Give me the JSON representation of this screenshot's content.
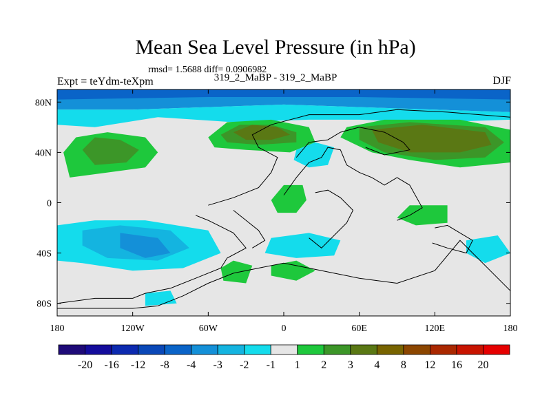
{
  "chart_data": {
    "type": "heatmap",
    "title": "Mean Sea Level Pressure (in hPa)",
    "stats": "rmsd= 1.5688 diff= 0.0906982",
    "left_label": "Expt = teYdm-teXpm",
    "center_label": "319_2_MaBP - 319_2_MaBP",
    "right_label": "DJF",
    "x_ticks": [
      {
        "value": -180,
        "label": "180"
      },
      {
        "value": -120,
        "label": "120W"
      },
      {
        "value": -60,
        "label": "60W"
      },
      {
        "value": 0,
        "label": "0"
      },
      {
        "value": 60,
        "label": "60E"
      },
      {
        "value": 120,
        "label": "120E"
      },
      {
        "value": 180,
        "label": "180"
      }
    ],
    "y_ticks": [
      {
        "value": 80,
        "label": "80N"
      },
      {
        "value": 40,
        "label": "40N"
      },
      {
        "value": 0,
        "label": "0"
      },
      {
        "value": -40,
        "label": "40S"
      },
      {
        "value": -80,
        "label": "80S"
      }
    ],
    "xlim": [
      -180,
      180
    ],
    "ylim": [
      -90,
      90
    ],
    "colorbar": {
      "labels": [
        "-20",
        "-16",
        "-12",
        "-8",
        "-4",
        "-3",
        "-2",
        "-1",
        "1",
        "2",
        "3",
        "4",
        "8",
        "12",
        "16",
        "20"
      ],
      "colors": [
        "#1e0a78",
        "#140c9c",
        "#0c2ab0",
        "#0a48b8",
        "#0a64c8",
        "#1490d8",
        "#14b4e0",
        "#14dcec",
        "#e6e6e6",
        "#1ec83c",
        "#3c9628",
        "#5a7814",
        "#786400",
        "#8c4600",
        "#aa2800",
        "#c81400",
        "#e60000"
      ]
    },
    "regions": [
      {
        "name": "north-polar-low",
        "cls": 5,
        "pts": [
          [
            -180,
            90
          ],
          [
            180,
            90
          ],
          [
            180,
            72
          ],
          [
            120,
            74
          ],
          [
            60,
            76
          ],
          [
            0,
            78
          ],
          [
            -60,
            76
          ],
          [
            -120,
            74
          ],
          [
            -180,
            74
          ]
        ]
      },
      {
        "name": "north-polar-core",
        "cls": 4,
        "pts": [
          [
            -180,
            90
          ],
          [
            180,
            90
          ],
          [
            180,
            82
          ],
          [
            60,
            84
          ],
          [
            -60,
            84
          ],
          [
            -180,
            82
          ]
        ]
      },
      {
        "name": "north-band",
        "cls": 7,
        "pts": [
          [
            -180,
            74
          ],
          [
            -120,
            74
          ],
          [
            -60,
            76
          ],
          [
            0,
            78
          ],
          [
            60,
            76
          ],
          [
            120,
            74
          ],
          [
            180,
            72
          ],
          [
            180,
            66
          ],
          [
            120,
            64
          ],
          [
            60,
            66
          ],
          [
            20,
            66
          ],
          [
            -40,
            64
          ],
          [
            -100,
            68
          ],
          [
            -150,
            60
          ],
          [
            -180,
            62
          ]
        ]
      },
      {
        "name": "north-pacific-high",
        "cls": 9,
        "pts": [
          [
            -175,
            40
          ],
          [
            -165,
            52
          ],
          [
            -140,
            56
          ],
          [
            -110,
            52
          ],
          [
            -100,
            40
          ],
          [
            -110,
            28
          ],
          [
            -140,
            24
          ],
          [
            -170,
            20
          ]
        ]
      },
      {
        "name": "north-pacific-high-2",
        "cls": 10,
        "pts": [
          [
            -160,
            42
          ],
          [
            -150,
            52
          ],
          [
            -130,
            50
          ],
          [
            -115,
            42
          ],
          [
            -125,
            32
          ],
          [
            -150,
            30
          ]
        ]
      },
      {
        "name": "north-atlantic-high",
        "cls": 9,
        "pts": [
          [
            -60,
            52
          ],
          [
            -45,
            64
          ],
          [
            -10,
            66
          ],
          [
            20,
            60
          ],
          [
            25,
            48
          ],
          [
            5,
            40
          ],
          [
            -30,
            42
          ],
          [
            -55,
            44
          ]
        ]
      },
      {
        "name": "north-atlantic-high-2",
        "cls": 10,
        "pts": [
          [
            -50,
            54
          ],
          [
            -35,
            62
          ],
          [
            -10,
            62
          ],
          [
            10,
            56
          ],
          [
            10,
            48
          ],
          [
            -20,
            46
          ],
          [
            -45,
            48
          ]
        ]
      },
      {
        "name": "north-atlantic-high-3",
        "cls": 11,
        "pts": [
          [
            -40,
            56
          ],
          [
            -25,
            62
          ],
          [
            -5,
            60
          ],
          [
            5,
            54
          ],
          [
            -10,
            50
          ],
          [
            -30,
            50
          ]
        ]
      },
      {
        "name": "siberian-high",
        "cls": 9,
        "pts": [
          [
            50,
            60
          ],
          [
            80,
            66
          ],
          [
            140,
            66
          ],
          [
            180,
            58
          ],
          [
            180,
            32
          ],
          [
            140,
            28
          ],
          [
            100,
            34
          ],
          [
            70,
            40
          ],
          [
            45,
            52
          ]
        ]
      },
      {
        "name": "siberian-high-2",
        "cls": 10,
        "pts": [
          [
            60,
            60
          ],
          [
            100,
            64
          ],
          [
            160,
            60
          ],
          [
            175,
            48
          ],
          [
            160,
            36
          ],
          [
            120,
            34
          ],
          [
            80,
            40
          ],
          [
            60,
            50
          ]
        ]
      },
      {
        "name": "siberian-high-3",
        "cls": 11,
        "pts": [
          [
            70,
            58
          ],
          [
            110,
            62
          ],
          [
            160,
            56
          ],
          [
            165,
            46
          ],
          [
            140,
            40
          ],
          [
            100,
            40
          ],
          [
            75,
            48
          ]
        ]
      },
      {
        "name": "mediterranean-low",
        "cls": 7,
        "pts": [
          [
            10,
            42
          ],
          [
            25,
            48
          ],
          [
            40,
            44
          ],
          [
            35,
            30
          ],
          [
            20,
            28
          ],
          [
            8,
            34
          ]
        ]
      },
      {
        "name": "central-africa-high",
        "cls": 9,
        "pts": [
          [
            -10,
            2
          ],
          [
            0,
            14
          ],
          [
            15,
            14
          ],
          [
            18,
            2
          ],
          [
            10,
            -8
          ],
          [
            -5,
            -8
          ]
        ]
      },
      {
        "name": "indian-ocean-high",
        "cls": 9,
        "pts": [
          [
            90,
            -12
          ],
          [
            100,
            -2
          ],
          [
            130,
            -2
          ],
          [
            130,
            -16
          ],
          [
            105,
            -18
          ]
        ]
      },
      {
        "name": "south-pacific-low",
        "cls": 7,
        "pts": [
          [
            -180,
            -18
          ],
          [
            -150,
            -14
          ],
          [
            -110,
            -14
          ],
          [
            -60,
            -22
          ],
          [
            -50,
            -40
          ],
          [
            -80,
            -52
          ],
          [
            -120,
            -54
          ],
          [
            -160,
            -48
          ],
          [
            -180,
            -46
          ]
        ]
      },
      {
        "name": "south-pacific-low-2",
        "cls": 6,
        "pts": [
          [
            -160,
            -22
          ],
          [
            -130,
            -18
          ],
          [
            -90,
            -22
          ],
          [
            -75,
            -36
          ],
          [
            -100,
            -46
          ],
          [
            -140,
            -44
          ],
          [
            -160,
            -34
          ]
        ]
      },
      {
        "name": "south-pacific-low-3",
        "cls": 5,
        "pts": [
          [
            -130,
            -24
          ],
          [
            -100,
            -28
          ],
          [
            -90,
            -40
          ],
          [
            -110,
            -44
          ],
          [
            -130,
            -36
          ]
        ]
      },
      {
        "name": "south-atlantic-low",
        "cls": 7,
        "pts": [
          [
            -10,
            -28
          ],
          [
            20,
            -24
          ],
          [
            45,
            -30
          ],
          [
            40,
            -42
          ],
          [
            10,
            -44
          ],
          [
            -15,
            -40
          ]
        ]
      },
      {
        "name": "south-atlantic-high",
        "cls": 9,
        "pts": [
          [
            -50,
            -52
          ],
          [
            -40,
            -46
          ],
          [
            -25,
            -50
          ],
          [
            -30,
            -64
          ],
          [
            -48,
            -62
          ]
        ]
      },
      {
        "name": "south-indian-high",
        "cls": 9,
        "pts": [
          [
            -10,
            -50
          ],
          [
            10,
            -46
          ],
          [
            25,
            -54
          ],
          [
            10,
            -62
          ],
          [
            -10,
            -58
          ]
        ]
      },
      {
        "name": "drake-low",
        "cls": 7,
        "pts": [
          [
            -110,
            -72
          ],
          [
            -90,
            -70
          ],
          [
            -85,
            -80
          ],
          [
            -110,
            -82
          ]
        ]
      },
      {
        "name": "australia-low",
        "cls": 7,
        "pts": [
          [
            145,
            -30
          ],
          [
            170,
            -26
          ],
          [
            180,
            -40
          ],
          [
            160,
            -48
          ],
          [
            145,
            -40
          ]
        ]
      }
    ],
    "coastlines": [
      [
        [
          -180,
          -80
        ],
        [
          -150,
          -76
        ],
        [
          -120,
          -76
        ],
        [
          -110,
          -72
        ],
        [
          -90,
          -68
        ],
        [
          -70,
          -60
        ],
        [
          -50,
          -52
        ],
        [
          -45,
          -44
        ],
        [
          -30,
          -36
        ],
        [
          -40,
          -24
        ],
        [
          -60,
          -14
        ],
        [
          -70,
          -10
        ]
      ],
      [
        [
          -180,
          -84
        ],
        [
          -120,
          -84
        ],
        [
          -100,
          -82
        ],
        [
          -80,
          -74
        ],
        [
          -60,
          -64
        ],
        [
          -40,
          -56
        ],
        [
          -20,
          -52
        ],
        [
          0,
          -48
        ],
        [
          20,
          -52
        ],
        [
          40,
          -56
        ],
        [
          60,
          -60
        ],
        [
          90,
          -64
        ],
        [
          120,
          -54
        ],
        [
          140,
          -30
        ],
        [
          150,
          -40
        ],
        [
          180,
          -70
        ]
      ],
      [
        [
          -60,
          -2
        ],
        [
          -40,
          4
        ],
        [
          -20,
          12
        ],
        [
          -10,
          24
        ],
        [
          -5,
          36
        ],
        [
          -20,
          44
        ],
        [
          -25,
          54
        ],
        [
          -10,
          62
        ],
        [
          20,
          70
        ],
        [
          60,
          70
        ],
        [
          90,
          74
        ],
        [
          130,
          72
        ],
        [
          180,
          68
        ]
      ],
      [
        [
          -40,
          -6
        ],
        [
          -30,
          -14
        ],
        [
          -20,
          -22
        ],
        [
          -15,
          -30
        ],
        [
          -25,
          -36
        ]
      ],
      [
        [
          0,
          6
        ],
        [
          10,
          20
        ],
        [
          20,
          32
        ],
        [
          30,
          36
        ],
        [
          35,
          44
        ],
        [
          45,
          42
        ],
        [
          50,
          30
        ],
        [
          60,
          24
        ],
        [
          70,
          20
        ],
        [
          80,
          14
        ],
        [
          90,
          20
        ],
        [
          100,
          14
        ],
        [
          110,
          -4
        ],
        [
          100,
          -10
        ],
        [
          90,
          -14
        ]
      ],
      [
        [
          20,
          -28
        ],
        [
          30,
          -36
        ],
        [
          40,
          -26
        ],
        [
          50,
          -16
        ],
        [
          55,
          -6
        ],
        [
          45,
          4
        ],
        [
          35,
          10
        ],
        [
          25,
          8
        ]
      ],
      [
        [
          10,
          36
        ],
        [
          20,
          48
        ],
        [
          35,
          50
        ],
        [
          45,
          56
        ],
        [
          60,
          60
        ],
        [
          80,
          56
        ],
        [
          95,
          48
        ],
        [
          100,
          42
        ],
        [
          80,
          38
        ],
        [
          65,
          44
        ]
      ],
      [
        [
          120,
          -20
        ],
        [
          130,
          -18
        ],
        [
          140,
          -24
        ],
        [
          150,
          -30
        ],
        [
          145,
          -40
        ],
        [
          130,
          -36
        ],
        [
          118,
          -32
        ]
      ]
    ]
  }
}
